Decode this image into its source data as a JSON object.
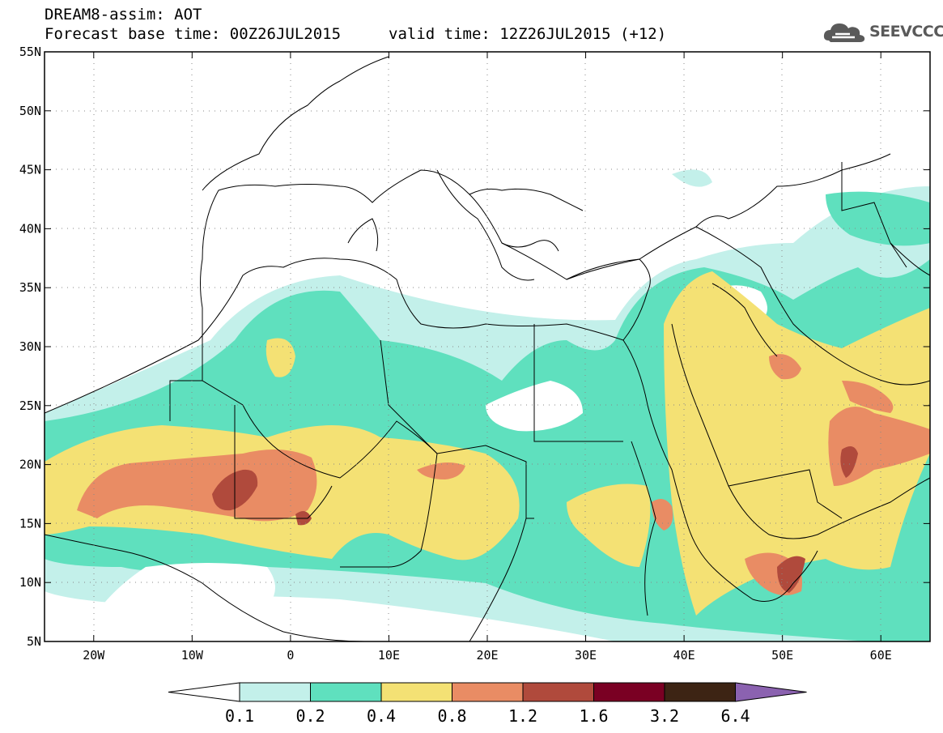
{
  "title": {
    "line1": "DREAM8-assim: AOT",
    "line2": "Forecast base time: 00Z26JUL2015",
    "valid": "valid time: 12Z26JUL2015 (+12)"
  },
  "logo": {
    "text": "SEEVCCC",
    "icon": "cloud-icon"
  },
  "axes": {
    "lat_labels": [
      "55N",
      "50N",
      "45N",
      "40N",
      "35N",
      "30N",
      "25N",
      "20N",
      "15N",
      "10N",
      "5N"
    ],
    "lon_labels": [
      "20W",
      "10W",
      "0",
      "10E",
      "20E",
      "30E",
      "40E",
      "50E",
      "60E"
    ],
    "lat_range": [
      5,
      55
    ],
    "lon_range": [
      -25,
      65
    ]
  },
  "colorbar": {
    "labels": [
      "0.1",
      "0.2",
      "0.4",
      "0.8",
      "1.2",
      "1.6",
      "3.2",
      "6.4"
    ],
    "colors": [
      "#c3f0ea",
      "#5fe0be",
      "#f4e174",
      "#e98c64",
      "#b04a3c",
      "#7a0023",
      "#3d2414",
      "#8b62b0"
    ],
    "under_color": "#ffffff"
  }
}
